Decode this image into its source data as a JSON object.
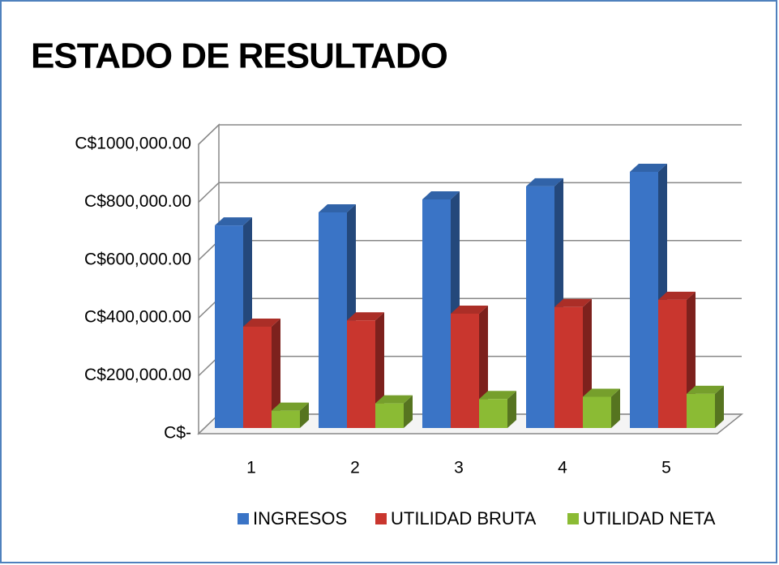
{
  "chart_data": {
    "type": "bar3d",
    "title": "ESTADO DE RESULTADO",
    "categories": [
      "1",
      "2",
      "3",
      "4",
      "5"
    ],
    "series": [
      {
        "name": "INGRESOS",
        "color": "#3a74c6",
        "values": [
          700000,
          745000,
          790000,
          835000,
          885000
        ]
      },
      {
        "name": "UTILIDAD BRUTA",
        "color": "#c9362e",
        "values": [
          350000,
          372000,
          395000,
          418000,
          443000
        ]
      },
      {
        "name": "UTILIDAD NETA",
        "color": "#8bbb34",
        "values": [
          60000,
          85000,
          100000,
          108000,
          118000
        ]
      }
    ],
    "ylim": [
      0,
      1000000
    ],
    "yticks": [
      {
        "value": 0,
        "label": "C$-"
      },
      {
        "value": 200000,
        "label": "C$200,000.00"
      },
      {
        "value": 400000,
        "label": "C$400,000.00"
      },
      {
        "value": 600000,
        "label": "C$600,000.00"
      },
      {
        "value": 800000,
        "label": "C$800,000.00"
      },
      {
        "value": 1000000,
        "label": "C$1000,000.00"
      }
    ],
    "grid": true,
    "legend": "bottom"
  }
}
